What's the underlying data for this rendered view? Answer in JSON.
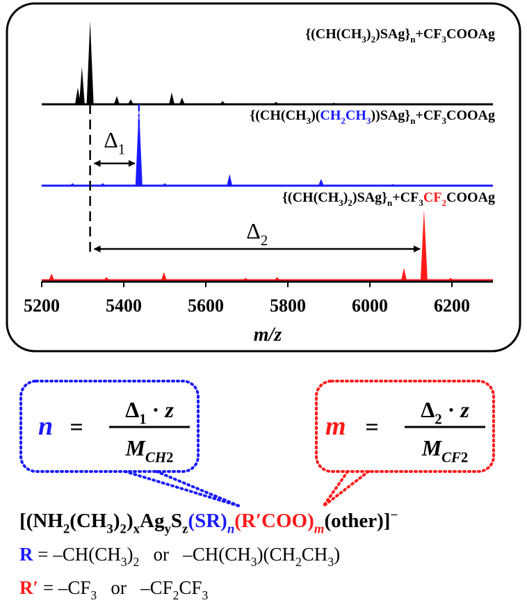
{
  "chart_data": {
    "type": "spectrum",
    "xlabel": "m/z",
    "xlim": [
      5200,
      6300
    ],
    "xticks": [
      5200,
      5400,
      5600,
      5800,
      6000,
      6200
    ],
    "ylim": [
      0,
      100
    ],
    "series": [
      {
        "name": [
          {
            "text": "{(CH(CH"
          },
          {
            "text": "3",
            "sub": true
          },
          {
            "text": ")"
          },
          {
            "text": "2",
            "sub": true
          },
          {
            "text": ")SAg}"
          },
          {
            "text": "n",
            "sub": true
          },
          {
            "text": "+CF"
          },
          {
            "text": "3",
            "sub": true
          },
          {
            "text": "COOAg"
          }
        ],
        "color": "#000000",
        "x": [
          5288,
          5298,
          5318,
          5383,
          5417,
          5517,
          5542,
          5641,
          5771,
          5912
        ],
        "values": [
          20,
          45,
          100,
          10,
          6,
          14,
          8,
          4,
          3,
          2
        ]
      },
      {
        "name": [
          {
            "text": "{(CH(CH"
          },
          {
            "text": "3",
            "sub": true
          },
          {
            "text": ")("
          },
          {
            "text": "CH",
            "color": "#1a1aff"
          },
          {
            "text": "2",
            "sub": true,
            "color": "#1a1aff"
          },
          {
            "text": "CH",
            "color": "#1a1aff"
          },
          {
            "text": "3",
            "sub": true,
            "color": "#1a1aff"
          },
          {
            "text": "))SAg}"
          },
          {
            "text": "n",
            "sub": true
          },
          {
            "text": "+CF"
          },
          {
            "text": "3",
            "sub": true
          },
          {
            "text": "COOAg"
          }
        ],
        "color": "#1a1aff",
        "x": [
          5275,
          5349,
          5437,
          5500,
          5658,
          5881,
          6056
        ],
        "values": [
          3,
          3,
          95,
          3,
          14,
          8,
          2
        ]
      },
      {
        "name": [
          {
            "text": "{(CH(CH"
          },
          {
            "text": "3",
            "sub": true
          },
          {
            "text": ")"
          },
          {
            "text": "2",
            "sub": true
          },
          {
            "text": ")SAg}"
          },
          {
            "text": "n",
            "sub": true
          },
          {
            "text": "+CF"
          },
          {
            "text": "3",
            "sub": true
          },
          {
            "text": "CF",
            "color": "#ff1a1a"
          },
          {
            "text": "2",
            "sub": true,
            "color": "#ff1a1a"
          },
          {
            "text": "COOAg"
          }
        ],
        "color": "#ff1a1a",
        "x": [
          5224,
          5358,
          5498,
          5697,
          5774,
          6083,
          6132,
          6197
        ],
        "values": [
          8,
          4,
          10,
          3,
          4,
          15,
          85,
          3
        ]
      }
    ],
    "annotations": [
      [
        {
          "text": "Δ"
        },
        {
          "text": "1",
          "sub": true
        }
      ],
      [
        {
          "text": "Δ"
        },
        {
          "text": "2",
          "sub": true
        }
      ]
    ]
  },
  "formulas": {
    "bubbles": [
      {
        "variable": [
          {
            "text": "n"
          }
        ],
        "equals": "=",
        "numerator": [
          {
            "text": "Δ"
          },
          {
            "text": "1",
            "sub": true
          },
          {
            "text": " · "
          },
          {
            "text": "z",
            "italic": true
          }
        ],
        "denominator": [
          {
            "text": "M",
            "italic": true
          },
          {
            "text": "CH",
            "sub": true,
            "italic": true
          },
          {
            "text": "2",
            "sub": true
          }
        ]
      },
      {
        "variable": [
          {
            "text": "m"
          }
        ],
        "equals": "=",
        "numerator": [
          {
            "text": "Δ"
          },
          {
            "text": "2",
            "sub": true
          },
          {
            "text": " · "
          },
          {
            "text": "z",
            "italic": true
          }
        ],
        "denominator": [
          {
            "text": "M",
            "italic": true
          },
          {
            "text": "CF",
            "sub": true,
            "italic": true
          },
          {
            "text": "2",
            "sub": true
          }
        ]
      }
    ],
    "composition": [
      {
        "text": "[(NH"
      },
      {
        "text": "2",
        "sub": true
      },
      {
        "text": "(CH"
      },
      {
        "text": "3",
        "sub": true
      },
      {
        "text": ")"
      },
      {
        "text": "2",
        "sub": true
      },
      {
        "text": ")"
      },
      {
        "text": "x",
        "sub": true
      },
      {
        "text": "Ag"
      },
      {
        "text": "y",
        "sub": true
      },
      {
        "text": "S"
      },
      {
        "text": "z",
        "sub": true
      },
      {
        "text": "(SR)",
        "color": "#1a1aff"
      },
      {
        "text": "n",
        "sub": true,
        "italic": true,
        "color": "#1a1aff"
      },
      {
        "text": "(R′COO)",
        "color": "#ff1a1a"
      },
      {
        "text": "m",
        "sub": true,
        "italic": true,
        "color": "#ff1a1a"
      },
      {
        "text": "(other)]"
      },
      {
        "text": "−",
        "sup": true
      }
    ],
    "definitions": [
      [
        {
          "text": "R",
          "bold": true,
          "color": "#1a1aff"
        },
        {
          "text": " = –CH(CH"
        },
        {
          "text": "3",
          "sub": true
        },
        {
          "text": ")"
        },
        {
          "text": "2",
          "sub": true
        },
        {
          "text": "   or   –CH(CH"
        },
        {
          "text": "3",
          "sub": true
        },
        {
          "text": ")(CH"
        },
        {
          "text": "2",
          "sub": true
        },
        {
          "text": "CH"
        },
        {
          "text": "3",
          "sub": true
        },
        {
          "text": ")"
        }
      ],
      [
        {
          "text": "R′",
          "bold": true,
          "color": "#ff1a1a"
        },
        {
          "text": " = –CF"
        },
        {
          "text": "3",
          "sub": true
        },
        {
          "text": "   or   –CF"
        },
        {
          "text": "2",
          "sub": true
        },
        {
          "text": "CF"
        },
        {
          "text": "3",
          "sub": true
        }
      ]
    ]
  }
}
